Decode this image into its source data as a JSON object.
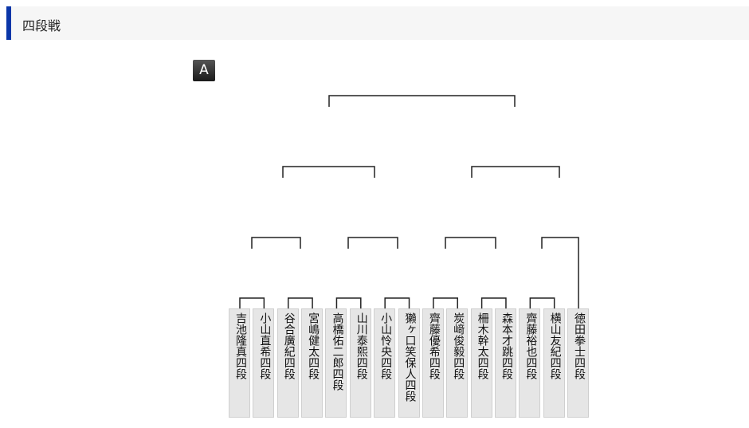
{
  "header": {
    "title": "四段戦",
    "accent_color": "#0a36a8"
  },
  "block_badge": "A",
  "players": [
    "吉池隆真四段",
    "小山直希四段",
    "谷合廣紀四段",
    "宮嶋健太四段",
    "高橋佑二郎四段",
    "山川泰熙四段",
    "小山怜央四段",
    "獺ヶ口笑保人四段",
    "齊藤優希四段",
    "炭﨑俊毅四段",
    "柵木幹太四段",
    "森本才跳四段",
    "齊藤裕也四段",
    "横山友紀四段",
    "徳田拳士四段"
  ]
}
